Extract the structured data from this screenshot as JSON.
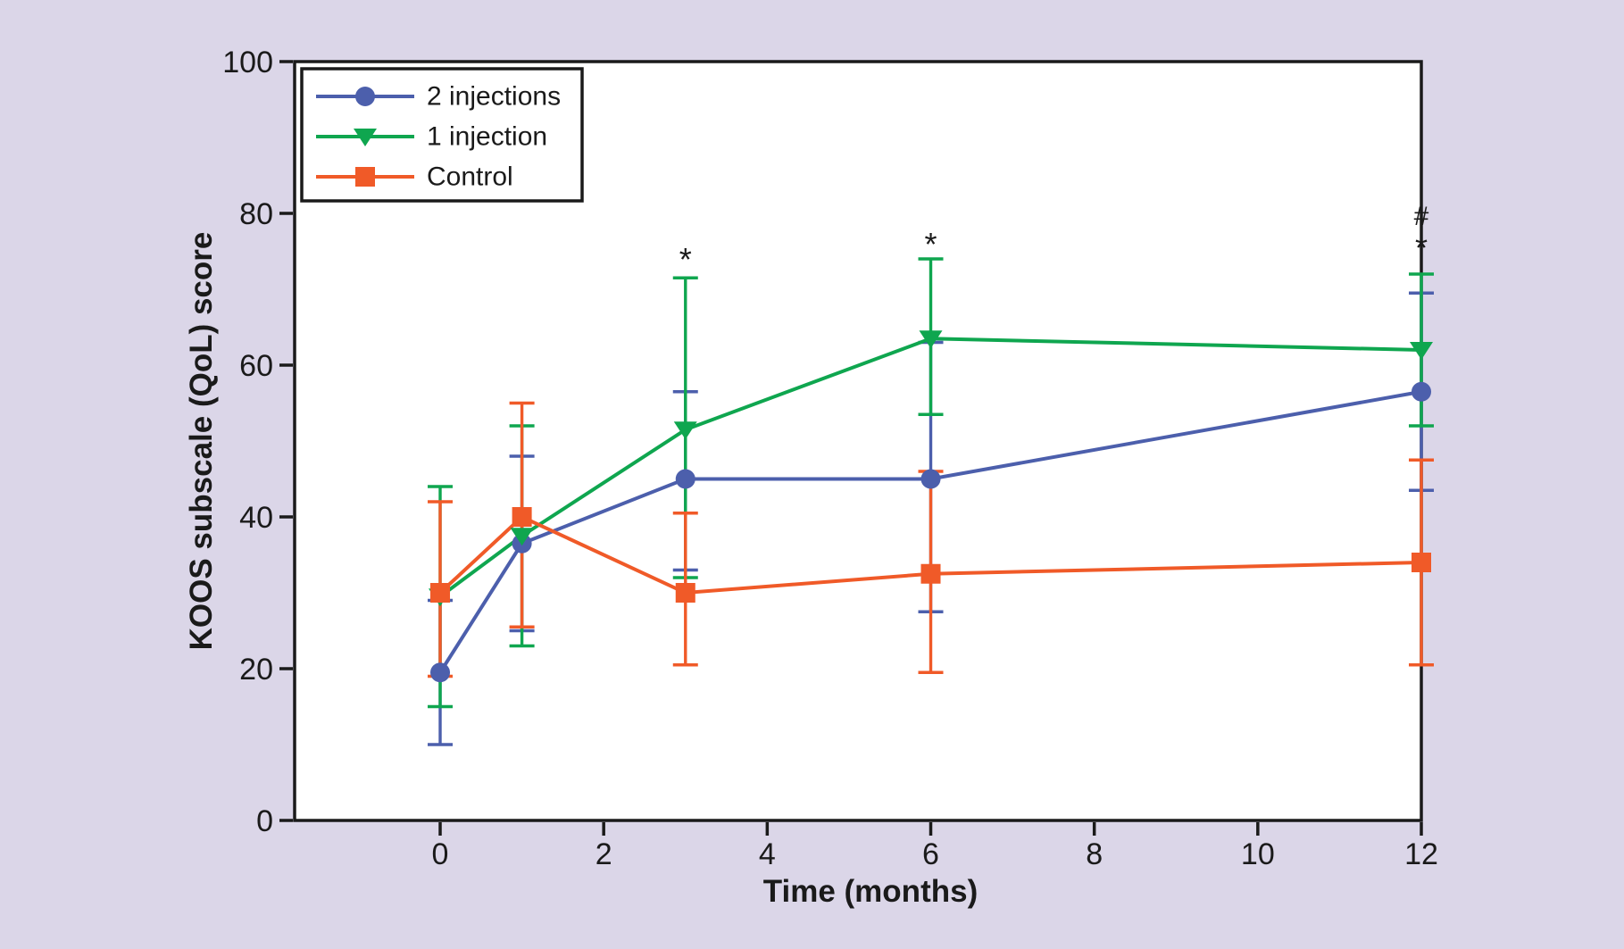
{
  "figure": {
    "background_color": "#DBD6E8",
    "plot_background": "#FFFFFF",
    "axis_color": "#1A1A1A"
  },
  "chart_data": {
    "type": "line",
    "title": "",
    "xlabel": "Time (months)",
    "ylabel": "KOOS subscale (QoL) score",
    "x_ticks": [
      0,
      2,
      4,
      6,
      8,
      10,
      12
    ],
    "y_ticks": [
      0,
      20,
      40,
      60,
      80,
      100
    ],
    "xlim": [
      -1.78,
      12
    ],
    "ylim": [
      0,
      100
    ],
    "grid": false,
    "legend_position": "top-left",
    "x": [
      0,
      1,
      3,
      6,
      12
    ],
    "series": [
      {
        "name": "2 injections",
        "color": "#4C5FAC",
        "marker": "circle",
        "values": [
          19.5,
          36.5,
          45,
          45,
          56.5
        ],
        "err_low": [
          10,
          25,
          33,
          27.5,
          43.5
        ],
        "err_high": [
          29,
          48,
          56.5,
          63,
          69.5
        ]
      },
      {
        "name": "1 injection",
        "color": "#0FA64F",
        "marker": "triangle-down",
        "values": [
          29.5,
          37.5,
          51.5,
          63.5,
          62
        ],
        "err_low": [
          15,
          23,
          32,
          53.5,
          52
        ],
        "err_high": [
          44,
          52,
          71.5,
          74,
          72
        ]
      },
      {
        "name": "Control",
        "color": "#F05A28",
        "marker": "square",
        "values": [
          30,
          40,
          30,
          32.5,
          34
        ],
        "err_low": [
          19,
          25.5,
          20.5,
          19.5,
          20.5
        ],
        "err_high": [
          42,
          55,
          40.5,
          46,
          47.5
        ]
      }
    ],
    "annotations": [
      {
        "month": 3,
        "symbol": "*",
        "score": 72.5
      },
      {
        "month": 6,
        "symbol": "*",
        "score": 74.5
      },
      {
        "month": 12,
        "symbol": "#",
        "score": 78.5
      },
      {
        "month": 12,
        "symbol": "*",
        "score": 74
      }
    ]
  }
}
